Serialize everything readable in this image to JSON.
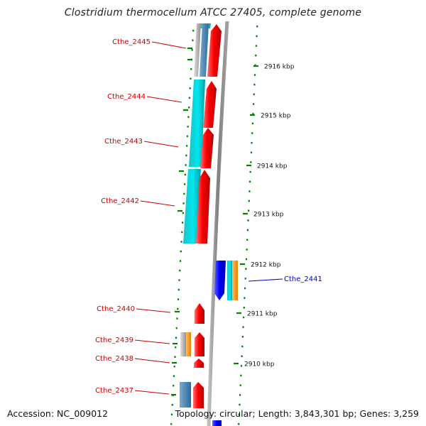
{
  "title": "Clostridium thermocellum ATCC 27405, complete genome",
  "footer": {
    "accession": "Accession: NC_009012",
    "topology": "Topology: circular; Length: 3,843,301 bp; Genes: 3,259"
  },
  "colors": {
    "forward_gene": "#ff0000",
    "reverse_gene": "#0000ff",
    "cyan_feature": "#00c8d0",
    "orange_feature": "#ff9900",
    "grey_feature": "#b0b0b0",
    "steelblue_feature": "#4682b4",
    "backbone": "#808080",
    "tick": "#008000",
    "label_forward": "#cc0000",
    "label_reverse": "#0000cc"
  },
  "ticks": [
    "2916 kbp",
    "2915 kbp",
    "2914 kbp",
    "2913 kbp",
    "2912 kbp",
    "2911 kbp",
    "2910 kbp"
  ],
  "gene_labels": [
    {
      "name": "Cthe_2445",
      "strand": "forward"
    },
    {
      "name": "Cthe_2444",
      "strand": "forward"
    },
    {
      "name": "Cthe_2443",
      "strand": "forward"
    },
    {
      "name": "Cthe_2442",
      "strand": "forward"
    },
    {
      "name": "Cthe_2441",
      "strand": "reverse"
    },
    {
      "name": "Cthe_2440",
      "strand": "forward"
    },
    {
      "name": "Cthe_2439",
      "strand": "forward"
    },
    {
      "name": "Cthe_2438",
      "strand": "forward"
    },
    {
      "name": "Cthe_2437",
      "strand": "forward"
    }
  ]
}
